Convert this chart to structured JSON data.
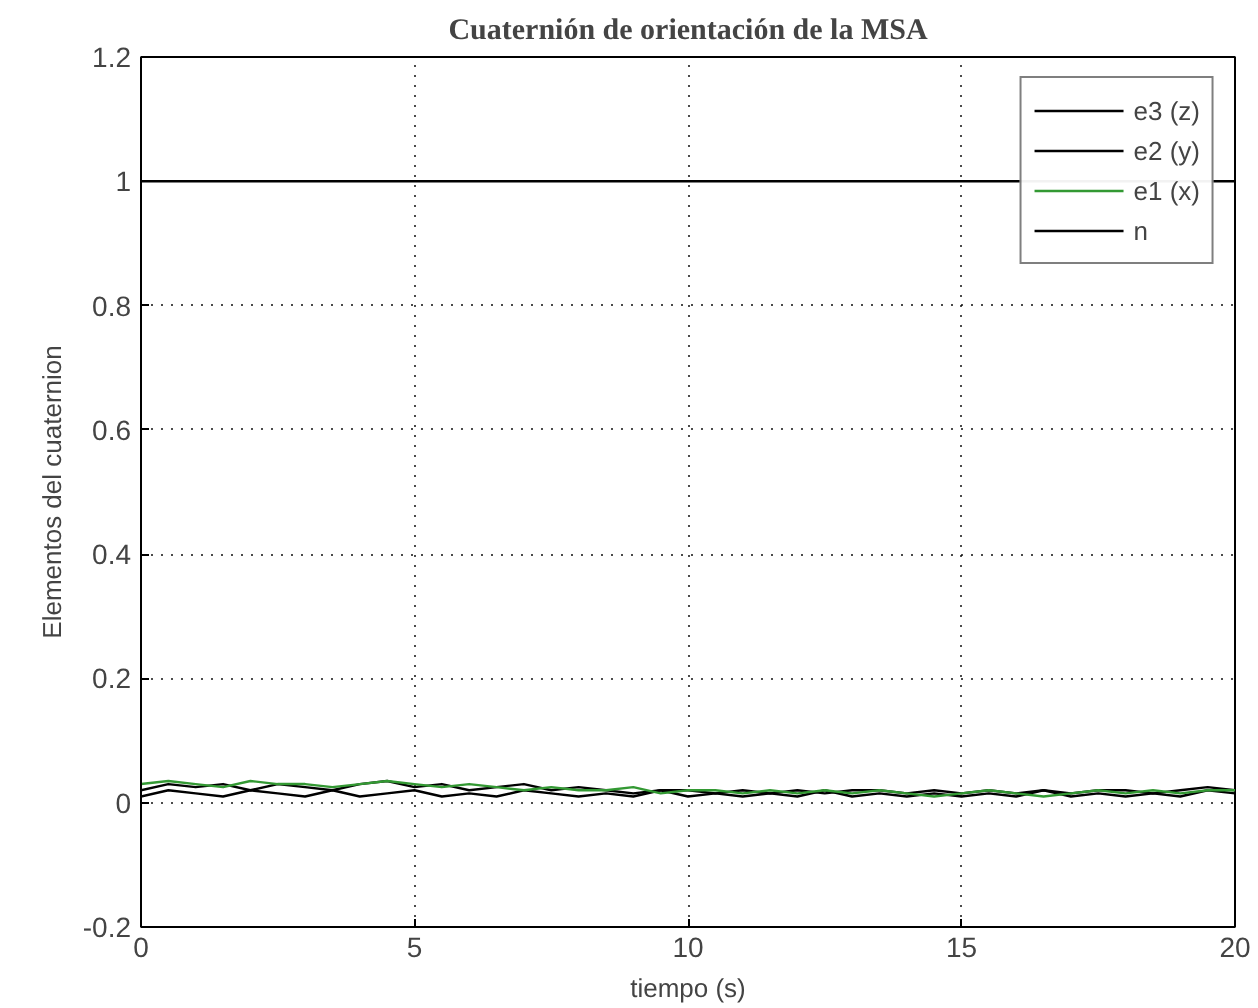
{
  "chart_data": {
    "type": "line",
    "title": "Cuaternión de orientación de la MSA",
    "xlabel": "tiempo (s)",
    "ylabel": "Elementos del cuaternion",
    "xlim": [
      0,
      20
    ],
    "ylim": [
      -0.2,
      1.2
    ],
    "xticks": [
      0,
      5,
      10,
      15,
      20
    ],
    "yticks": [
      -0.2,
      0,
      0.2,
      0.4,
      0.6,
      0.8,
      1,
      1.2
    ],
    "grid": true,
    "legend": "top right",
    "line_style": "solid",
    "x": [
      0,
      0.5,
      1,
      1.5,
      2,
      2.5,
      3,
      3.5,
      4,
      4.5,
      5,
      5.5,
      6,
      6.5,
      7,
      7.5,
      8,
      8.5,
      9,
      9.5,
      10,
      10.5,
      11,
      11.5,
      12,
      12.5,
      13,
      13.5,
      14,
      14.5,
      15,
      15.5,
      16,
      16.5,
      17,
      17.5,
      18,
      18.5,
      19,
      19.5,
      20
    ],
    "series": [
      {
        "name": "e3 (z)",
        "color": "#000000",
        "values": [
          0.01,
          0.02,
          0.015,
          0.01,
          0.02,
          0.015,
          0.01,
          0.02,
          0.01,
          0.015,
          0.02,
          0.01,
          0.015,
          0.01,
          0.02,
          0.015,
          0.01,
          0.015,
          0.01,
          0.02,
          0.01,
          0.015,
          0.01,
          0.015,
          0.01,
          0.02,
          0.01,
          0.015,
          0.01,
          0.015,
          0.01,
          0.015,
          0.01,
          0.02,
          0.01,
          0.015,
          0.01,
          0.015,
          0.01,
          0.02,
          0.015
        ]
      },
      {
        "name": "e2 (y)",
        "color": "#000000",
        "values": [
          0.02,
          0.03,
          0.025,
          0.03,
          0.02,
          0.03,
          0.025,
          0.02,
          0.03,
          0.035,
          0.025,
          0.03,
          0.02,
          0.025,
          0.03,
          0.02,
          0.025,
          0.02,
          0.015,
          0.02,
          0.02,
          0.015,
          0.02,
          0.015,
          0.02,
          0.015,
          0.02,
          0.02,
          0.015,
          0.02,
          0.015,
          0.02,
          0.015,
          0.02,
          0.015,
          0.02,
          0.02,
          0.015,
          0.02,
          0.025,
          0.02
        ]
      },
      {
        "name": "e1 (x)",
        "color": "#339933",
        "values": [
          0.03,
          0.035,
          0.03,
          0.025,
          0.035,
          0.03,
          0.03,
          0.025,
          0.03,
          0.035,
          0.03,
          0.025,
          0.03,
          0.025,
          0.02,
          0.025,
          0.02,
          0.02,
          0.025,
          0.015,
          0.02,
          0.02,
          0.015,
          0.02,
          0.015,
          0.02,
          0.015,
          0.02,
          0.015,
          0.01,
          0.015,
          0.02,
          0.015,
          0.01,
          0.015,
          0.02,
          0.015,
          0.02,
          0.015,
          0.02,
          0.02
        ]
      },
      {
        "name": "n",
        "color": "#000000",
        "x": [
          0,
          20
        ],
        "values": [
          1,
          1
        ]
      }
    ]
  }
}
